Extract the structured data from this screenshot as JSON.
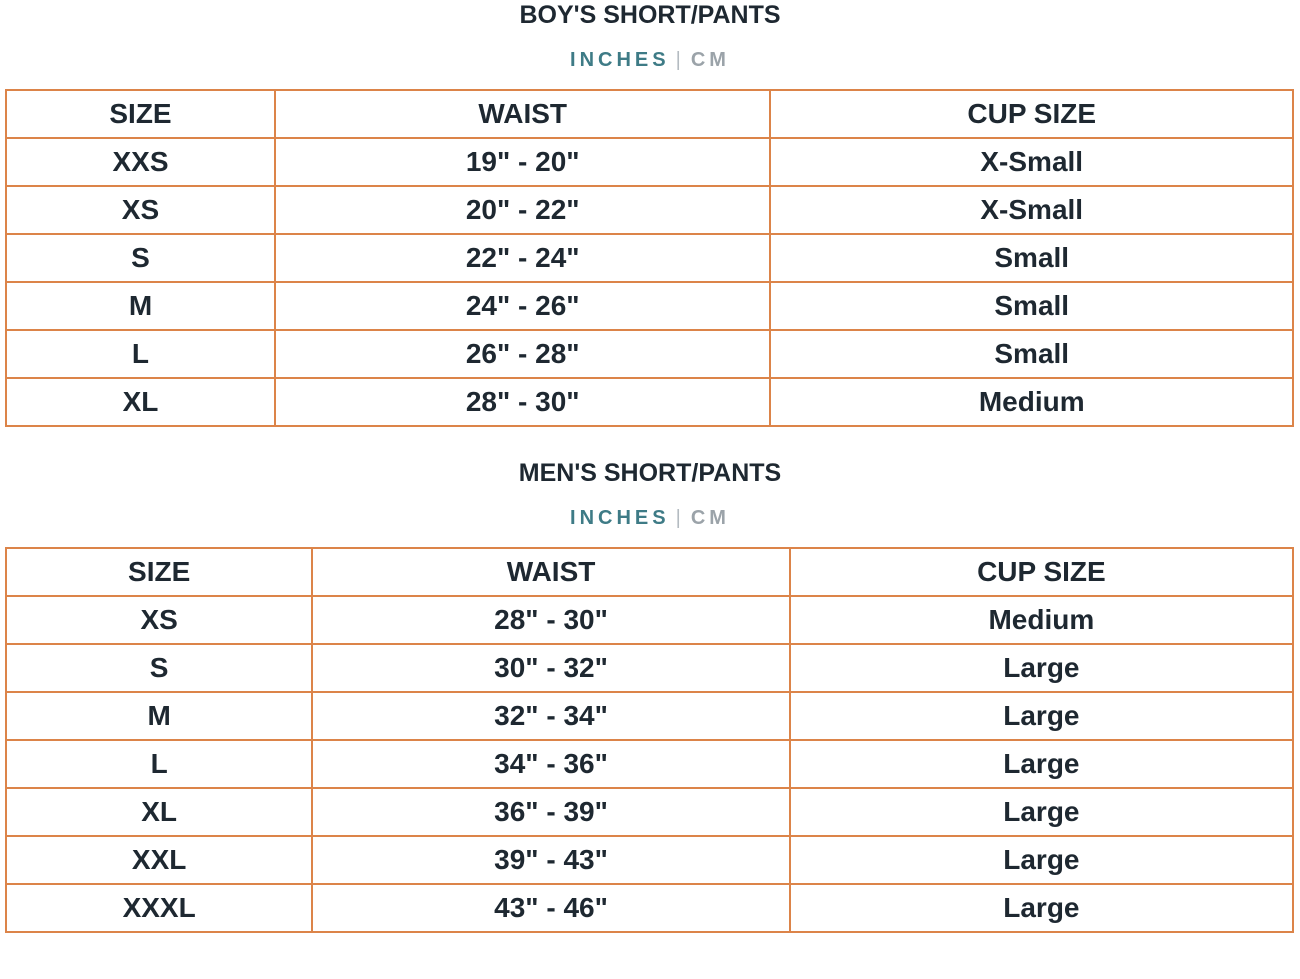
{
  "colors": {
    "border": "#dc8449",
    "text": "#1e2831",
    "inches": "#3e7b86",
    "cm": "#9ba3a9",
    "separator": "#b4bbc1",
    "bg": "#ffffff"
  },
  "sections": [
    {
      "title": "BOY'S SHORT/PANTS",
      "units": {
        "inches": "INCHES",
        "separator": "|",
        "cm": "CM"
      },
      "table": {
        "headers": [
          "SIZE",
          "WAIST",
          "CUP SIZE"
        ],
        "rows": [
          [
            "XXS",
            "19\" - 20\"",
            "X-Small"
          ],
          [
            "XS",
            "20\" - 22\"",
            "X-Small"
          ],
          [
            "S",
            "22\" - 24\"",
            "Small"
          ],
          [
            "M",
            "24\" - 26\"",
            "Small"
          ],
          [
            "L",
            "26\" - 28\"",
            "Small"
          ],
          [
            "XL",
            "28\" - 30\"",
            "Medium"
          ]
        ]
      }
    },
    {
      "title": "MEN'S SHORT/PANTS",
      "units": {
        "inches": "INCHES",
        "separator": "|",
        "cm": "CM"
      },
      "table": {
        "headers": [
          "SIZE",
          "WAIST",
          "CUP SIZE"
        ],
        "rows": [
          [
            "XS",
            "28\" - 30\"",
            "Medium"
          ],
          [
            "S",
            "30\" - 32\"",
            "Large"
          ],
          [
            "M",
            "32\" - 34\"",
            "Large"
          ],
          [
            "L",
            "34\" - 36\"",
            "Large"
          ],
          [
            "XL",
            "36\" - 39\"",
            "Large"
          ],
          [
            "XXL",
            "39\" - 43\"",
            "Large"
          ],
          [
            "XXXL",
            "43\" - 46\"",
            "Large"
          ]
        ]
      }
    }
  ]
}
